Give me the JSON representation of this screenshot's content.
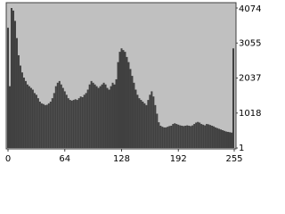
{
  "chart_data": {
    "type": "bar",
    "x": [
      0,
      2,
      4,
      6,
      8,
      10,
      12,
      14,
      16,
      18,
      20,
      22,
      24,
      26,
      28,
      30,
      32,
      34,
      36,
      38,
      40,
      42,
      44,
      46,
      48,
      50,
      52,
      54,
      56,
      58,
      60,
      62,
      64,
      66,
      68,
      70,
      72,
      74,
      76,
      78,
      80,
      82,
      84,
      86,
      88,
      90,
      92,
      94,
      96,
      98,
      100,
      102,
      104,
      106,
      108,
      110,
      112,
      114,
      116,
      118,
      120,
      122,
      124,
      126,
      128,
      130,
      132,
      134,
      136,
      138,
      140,
      142,
      144,
      146,
      148,
      150,
      152,
      154,
      156,
      158,
      160,
      162,
      164,
      166,
      168,
      170,
      172,
      174,
      176,
      178,
      180,
      182,
      184,
      186,
      188,
      190,
      192,
      194,
      196,
      198,
      200,
      202,
      204,
      206,
      208,
      210,
      212,
      214,
      216,
      218,
      220,
      222,
      224,
      226,
      228,
      230,
      232,
      234,
      236,
      238,
      240,
      242,
      244,
      246,
      248,
      250,
      252,
      254
    ],
    "values": [
      3500,
      1800,
      4074,
      4000,
      3700,
      3200,
      2700,
      2400,
      2200,
      2050,
      1950,
      1850,
      1800,
      1750,
      1700,
      1600,
      1550,
      1450,
      1350,
      1300,
      1280,
      1250,
      1260,
      1300,
      1350,
      1450,
      1600,
      1800,
      1900,
      1950,
      1850,
      1750,
      1650,
      1550,
      1450,
      1400,
      1380,
      1400,
      1420,
      1400,
      1450,
      1500,
      1480,
      1550,
      1600,
      1700,
      1850,
      1950,
      1900,
      1850,
      1800,
      1750,
      1800,
      1850,
      1900,
      1850,
      1750,
      1700,
      1800,
      1900,
      1850,
      2000,
      2500,
      2800,
      2900,
      2850,
      2800,
      2650,
      2500,
      2300,
      2100,
      1900,
      1700,
      1550,
      1450,
      1400,
      1350,
      1300,
      1250,
      1400,
      1550,
      1650,
      1500,
      1250,
      1000,
      750,
      650,
      620,
      600,
      600,
      620,
      640,
      650,
      700,
      720,
      700,
      680,
      660,
      650,
      640,
      650,
      660,
      650,
      640,
      660,
      700,
      740,
      760,
      740,
      700,
      680,
      660,
      700,
      690,
      670,
      650,
      630,
      600,
      580,
      560,
      540,
      520,
      500,
      480,
      470,
      460,
      450,
      2900
    ],
    "color": "#404040",
    "xlim": [
      0,
      255
    ],
    "xticks": [
      0,
      64,
      128,
      192,
      255
    ],
    "ylim": [
      1,
      4074
    ],
    "yticks": [
      1,
      1018,
      2037,
      3055,
      4074
    ]
  }
}
